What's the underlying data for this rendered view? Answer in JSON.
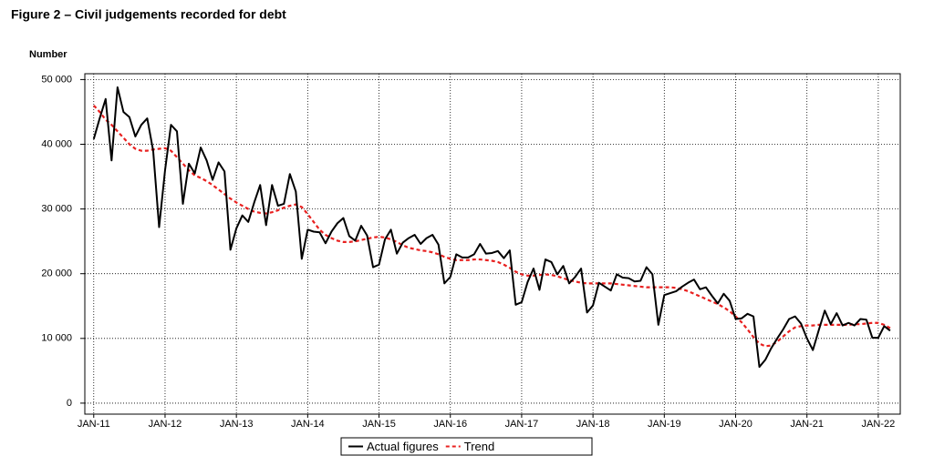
{
  "chart_data": {
    "type": "line",
    "title": "Figure 2 – Civil judgements recorded for debt",
    "y_label": "Number",
    "categories": [
      "JAN-11",
      null,
      null,
      null,
      null,
      null,
      null,
      null,
      null,
      null,
      null,
      null,
      "JAN-12",
      null,
      null,
      null,
      null,
      null,
      null,
      null,
      null,
      null,
      null,
      null,
      "JAN-13",
      null,
      null,
      null,
      null,
      null,
      null,
      null,
      null,
      null,
      null,
      null,
      "JAN-14",
      null,
      null,
      null,
      null,
      null,
      null,
      null,
      null,
      null,
      null,
      null,
      "JAN-15",
      null,
      null,
      null,
      null,
      null,
      null,
      null,
      null,
      null,
      null,
      null,
      "JAN-16",
      null,
      null,
      null,
      null,
      null,
      null,
      null,
      null,
      null,
      null,
      null,
      "JAN-17",
      null,
      null,
      null,
      null,
      null,
      null,
      null,
      null,
      null,
      null,
      null,
      "JAN-18",
      null,
      null,
      null,
      null,
      null,
      null,
      null,
      null,
      null,
      null,
      null,
      "JAN-19",
      null,
      null,
      null,
      null,
      null,
      null,
      null,
      null,
      null,
      null,
      null,
      "JAN-20",
      null,
      null,
      null,
      null,
      null,
      null,
      null,
      null,
      null,
      null,
      null,
      "JAN-21",
      null,
      null,
      null,
      null,
      null,
      null,
      null,
      null,
      null,
      null,
      null,
      "JAN-22",
      null,
      null
    ],
    "series": [
      {
        "name": "Actual figures",
        "color": "#000000",
        "dashed": false,
        "values": [
          40800,
          44000,
          47000,
          37500,
          48800,
          45000,
          44200,
          41200,
          43000,
          44000,
          39000,
          27200,
          36000,
          43000,
          42000,
          30800,
          37000,
          35500,
          39500,
          37500,
          34500,
          37200,
          35800,
          23700,
          27000,
          29000,
          28000,
          31000,
          33700,
          27500,
          33700,
          30500,
          30800,
          35400,
          32700,
          22300,
          26800,
          26500,
          26400,
          24700,
          26500,
          27800,
          28600,
          25800,
          25100,
          27400,
          25900,
          21000,
          21400,
          25300,
          26800,
          23100,
          24800,
          25500,
          26000,
          24600,
          25500,
          26000,
          24500,
          18500,
          19500,
          23000,
          22500,
          22500,
          23000,
          24600,
          23100,
          23200,
          23500,
          22400,
          23600,
          15200,
          15600,
          18700,
          20800,
          17500,
          22200,
          21800,
          19900,
          21200,
          18500,
          19500,
          20800,
          14000,
          15100,
          18600,
          18000,
          17400,
          19900,
          19400,
          19300,
          18800,
          18900,
          21000,
          19900,
          12100,
          16700,
          17000,
          17300,
          18000,
          18600,
          19100,
          17600,
          17900,
          16600,
          15400,
          16900,
          15800,
          13000,
          13100,
          13800,
          13400,
          5600,
          6700,
          8500,
          10000,
          11400,
          13000,
          13400,
          12300,
          10000,
          8200,
          11300,
          14300,
          12200,
          13900,
          12000,
          12400,
          12000,
          13000,
          12900,
          10100,
          10100,
          11900,
          11200
        ]
      },
      {
        "name": "Trend",
        "color": "#e8201f",
        "dashed": true,
        "values": [
          46000,
          45000,
          43800,
          43000,
          42000,
          41000,
          40000,
          39300,
          39000,
          39000,
          39200,
          39300,
          39400,
          39000,
          38000,
          37000,
          36000,
          35200,
          34800,
          34300,
          33700,
          33000,
          32300,
          31600,
          31000,
          30500,
          30000,
          29600,
          29400,
          29300,
          29500,
          29800,
          30200,
          30500,
          30700,
          30300,
          29200,
          28000,
          26800,
          26000,
          25500,
          25100,
          24900,
          24900,
          25000,
          25200,
          25400,
          25600,
          25700,
          25600,
          25300,
          24900,
          24400,
          24000,
          23800,
          23600,
          23500,
          23300,
          23000,
          22600,
          22300,
          22100,
          22100,
          22100,
          22200,
          22200,
          22100,
          22000,
          21800,
          21400,
          20900,
          20300,
          19900,
          19700,
          19700,
          19800,
          19900,
          19800,
          19600,
          19300,
          19000,
          18800,
          18600,
          18500,
          18500,
          18500,
          18500,
          18500,
          18400,
          18300,
          18200,
          18100,
          18000,
          17900,
          17900,
          17900,
          17900,
          17900,
          17800,
          17600,
          17300,
          16900,
          16500,
          16100,
          15700,
          15300,
          14800,
          14200,
          13400,
          12500,
          11400,
          10200,
          9200,
          8800,
          8900,
          9500,
          10300,
          11100,
          11700,
          11900,
          12000,
          12000,
          12100,
          12100,
          12100,
          12100,
          12100,
          12100,
          12200,
          12200,
          12300,
          12400,
          12400,
          12100,
          11600
        ]
      }
    ],
    "ylim": [
      -1700,
      50900
    ],
    "yticks": [
      {
        "value": 0,
        "label": "0"
      },
      {
        "value": 10000,
        "label": "10 000"
      },
      {
        "value": 20000,
        "label": "20 000"
      },
      {
        "value": 30000,
        "label": "30 000"
      },
      {
        "value": 40000,
        "label": "40 000"
      },
      {
        "value": 50000,
        "label": "50 000"
      }
    ],
    "grid": true,
    "legend": "bottom"
  }
}
